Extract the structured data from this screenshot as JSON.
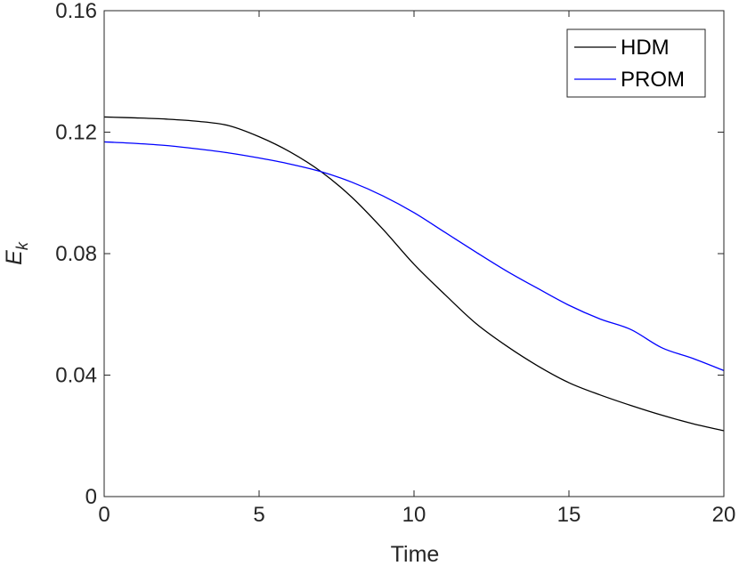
{
  "chart_data": {
    "type": "line",
    "title": "",
    "xlabel": "Time",
    "ylabel": {
      "base": "E",
      "subscript": "k"
    },
    "xlim": [
      0,
      20
    ],
    "ylim": [
      0,
      0.16
    ],
    "xticks": [
      0,
      5,
      10,
      15,
      20
    ],
    "xtick_labels": [
      "0",
      "5",
      "10",
      "15",
      "20"
    ],
    "yticks": [
      0,
      0.04,
      0.08,
      0.12,
      0.16
    ],
    "ytick_labels": [
      "0",
      "0.04",
      "0.08",
      "0.12",
      "0.16"
    ],
    "grid": false,
    "legend_position": "top-right",
    "series": [
      {
        "name": "HDM",
        "color": "#000000",
        "x": [
          0,
          1,
          2,
          3,
          4,
          5,
          6,
          7,
          8,
          9,
          10,
          11,
          12,
          13,
          14,
          15,
          16,
          17,
          18,
          19,
          20
        ],
        "y": [
          0.125,
          0.1247,
          0.1243,
          0.1236,
          0.1222,
          0.1185,
          0.1135,
          0.107,
          0.0985,
          0.088,
          0.0765,
          0.0665,
          0.057,
          0.0495,
          0.043,
          0.0375,
          0.0335,
          0.03,
          0.0268,
          0.024,
          0.0217
        ]
      },
      {
        "name": "PROM",
        "color": "#0000ff",
        "x": [
          0,
          1,
          2,
          3,
          4,
          5,
          6,
          7,
          8,
          9,
          10,
          11,
          12,
          13,
          14,
          15,
          16,
          17,
          18,
          19,
          20
        ],
        "y": [
          0.1168,
          0.1163,
          0.1156,
          0.1145,
          0.1132,
          0.1115,
          0.1095,
          0.107,
          0.1035,
          0.099,
          0.0935,
          0.087,
          0.0805,
          0.0742,
          0.0685,
          0.063,
          0.0585,
          0.055,
          0.049,
          0.0455,
          0.0415
        ]
      }
    ]
  }
}
